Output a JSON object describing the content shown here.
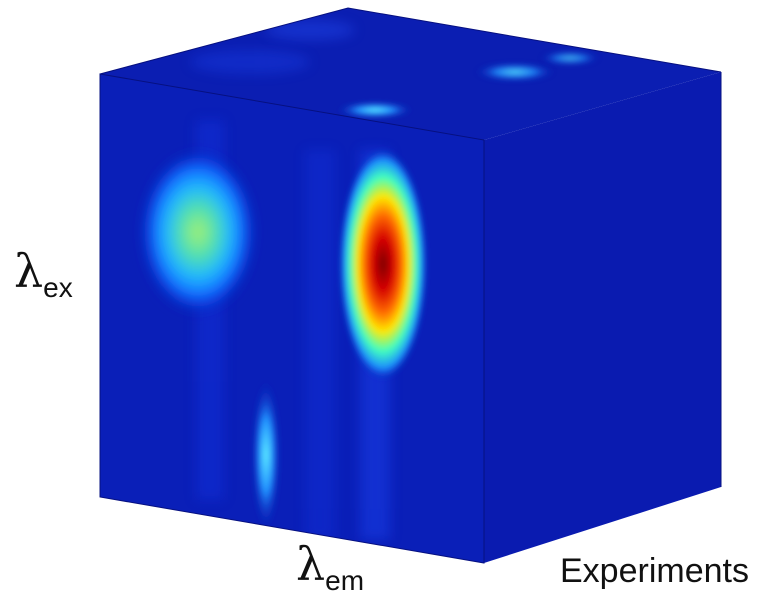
{
  "figure": {
    "colormap": [
      "#00008f",
      "#0000ff",
      "#00ffff",
      "#ffff00",
      "#ff0000",
      "#800000"
    ],
    "background_color": "#0a1fb8",
    "axes": {
      "excitation": {
        "symbol": "λ",
        "subscript": "ex"
      },
      "emission": {
        "symbol": "λ",
        "subscript": "em"
      },
      "experiments": {
        "label": "Experiments"
      }
    }
  }
}
